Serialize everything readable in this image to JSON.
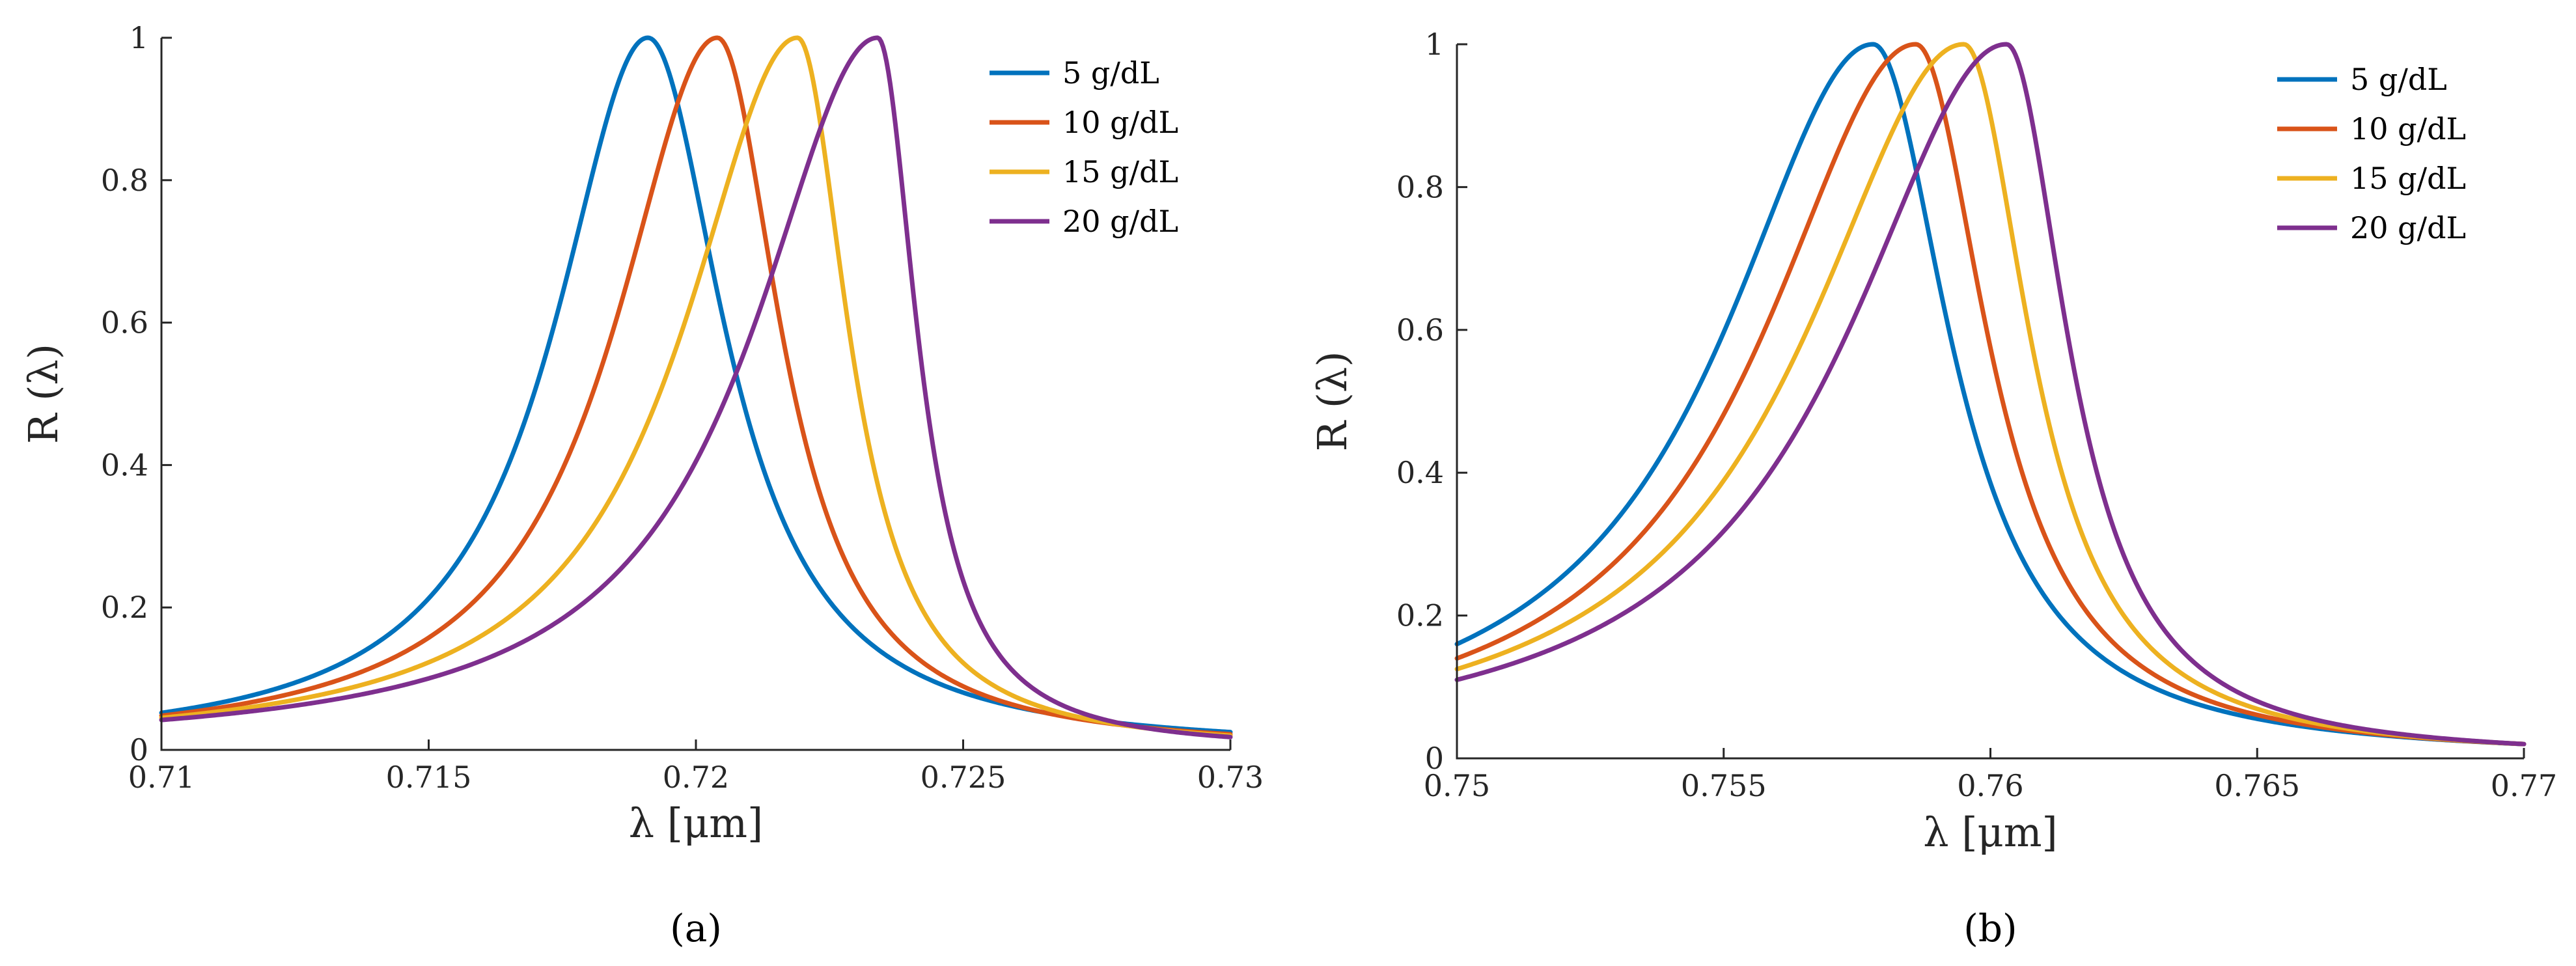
{
  "chart_data": [
    {
      "type": "line",
      "panel_label": "(a)",
      "xlabel": "λ [μm]",
      "ylabel": "R (λ)",
      "xlim": [
        0.71,
        0.73
      ],
      "ylim": [
        0,
        1
      ],
      "x_ticks": [
        0.71,
        0.715,
        0.72,
        0.725,
        0.73
      ],
      "x_tick_labels": [
        "0.71",
        "0.715",
        "0.72",
        "0.725",
        "0.73"
      ],
      "y_ticks": [
        0,
        0.2,
        0.4,
        0.6,
        0.8,
        1
      ],
      "y_tick_labels": [
        "0",
        "0.2",
        "0.4",
        "0.6",
        "0.8",
        "1"
      ],
      "grid": false,
      "legend_position": "top-right",
      "series": [
        {
          "name": "5 g/dL",
          "color": "#0072BD",
          "peak_x": 0.7191,
          "peak_y": 1.0,
          "left_edge_y": 0.052,
          "right_edge_y": 0.025
        },
        {
          "name": "10 g/dL",
          "color": "#D95319",
          "peak_x": 0.7204,
          "peak_y": 1.0,
          "left_edge_y": 0.048,
          "right_edge_y": 0.022
        },
        {
          "name": "15 g/dL",
          "color": "#EDB120",
          "peak_x": 0.7219,
          "peak_y": 1.0,
          "left_edge_y": 0.045,
          "right_edge_y": 0.02
        },
        {
          "name": "20 g/dL",
          "color": "#7E2F8E",
          "peak_x": 0.7234,
          "peak_y": 1.0,
          "left_edge_y": 0.042,
          "right_edge_y": 0.018
        }
      ]
    },
    {
      "type": "line",
      "panel_label": "(b)",
      "xlabel": "λ [μm]",
      "ylabel": "R (λ)",
      "xlim": [
        0.75,
        0.77
      ],
      "ylim": [
        0,
        1
      ],
      "x_ticks": [
        0.75,
        0.755,
        0.76,
        0.765,
        0.77
      ],
      "x_tick_labels": [
        "0.75",
        "0.755",
        "0.76",
        "0.765",
        "0.77"
      ],
      "y_ticks": [
        0,
        0.2,
        0.4,
        0.6,
        0.8,
        1
      ],
      "y_tick_labels": [
        "0",
        "0.2",
        "0.4",
        "0.6",
        "0.8",
        "1"
      ],
      "grid": false,
      "legend_position": "top-right",
      "series": [
        {
          "name": "5 g/dL",
          "color": "#0072BD",
          "peak_x": 0.7578,
          "peak_y": 1.0,
          "left_edge_y": 0.16,
          "right_edge_y": 0.02
        },
        {
          "name": "10 g/dL",
          "color": "#D95319",
          "peak_x": 0.7586,
          "peak_y": 1.0,
          "left_edge_y": 0.14,
          "right_edge_y": 0.02
        },
        {
          "name": "15 g/dL",
          "color": "#EDB120",
          "peak_x": 0.7595,
          "peak_y": 1.0,
          "left_edge_y": 0.125,
          "right_edge_y": 0.02
        },
        {
          "name": "20 g/dL",
          "color": "#7E2F8E",
          "peak_x": 0.7603,
          "peak_y": 1.0,
          "left_edge_y": 0.11,
          "right_edge_y": 0.02
        }
      ]
    }
  ]
}
